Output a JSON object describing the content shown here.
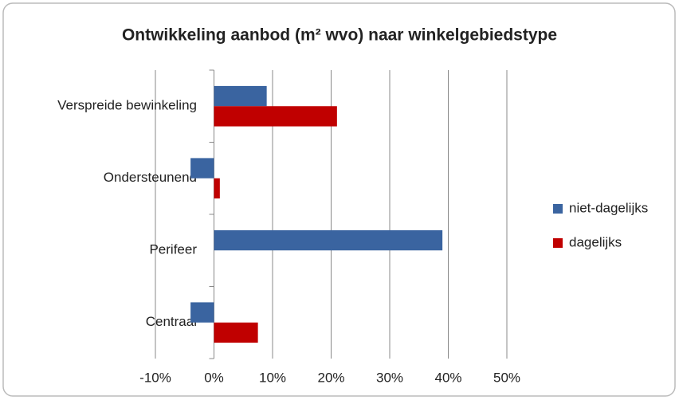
{
  "chart_data": {
    "type": "barh",
    "title": "Ontwikkeling aanbod (m² wvo)  naar winkelgebiedstype",
    "categories": [
      "Verspreide bewinkeling",
      "Ondersteunend",
      "Perifeer",
      "Centraal"
    ],
    "series": [
      {
        "name": "niet-dagelijks",
        "color": "#3a64a0",
        "values": [
          9,
          -4,
          39,
          -4
        ]
      },
      {
        "name": "dagelijks",
        "color": "#c00000",
        "values": [
          21,
          1,
          0,
          7.5
        ]
      }
    ],
    "xlim": [
      -10,
      50
    ],
    "xticks": [
      {
        "value": -10,
        "label": "-10%"
      },
      {
        "value": 0,
        "label": "0%"
      },
      {
        "value": 10,
        "label": "10%"
      },
      {
        "value": 20,
        "label": "20%"
      },
      {
        "value": 30,
        "label": "30%"
      },
      {
        "value": 40,
        "label": "40%"
      },
      {
        "value": 50,
        "label": "50%"
      }
    ],
    "grid": true,
    "legend": "right"
  }
}
